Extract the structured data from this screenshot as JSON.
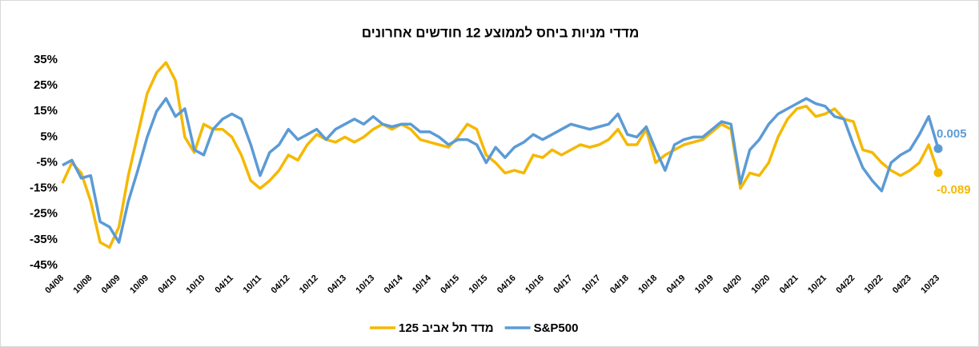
{
  "chart_data": {
    "type": "line",
    "title": "מדדי מניות ביחס לממוצע 12 חודשים אחרונים",
    "categories": [
      "04/08",
      null,
      null,
      "10/08",
      null,
      null,
      "04/09",
      null,
      null,
      "10/09",
      null,
      null,
      "04/10",
      null,
      null,
      "10/10",
      null,
      null,
      "04/11",
      null,
      null,
      "10/11",
      null,
      null,
      "04/12",
      null,
      null,
      "10/12",
      null,
      null,
      "04/13",
      null,
      null,
      "10/13",
      null,
      null,
      "04/14",
      null,
      null,
      "10/14",
      null,
      null,
      "04/15",
      null,
      null,
      "10/15",
      null,
      null,
      "04/16",
      null,
      null,
      "10/16",
      null,
      null,
      "04/17",
      null,
      null,
      "10/17",
      null,
      null,
      "04/18",
      null,
      null,
      "10/18",
      null,
      null,
      "04/19",
      null,
      null,
      "10/19",
      null,
      null,
      "04/20",
      null,
      null,
      "10/20",
      null,
      null,
      "04/21",
      null,
      null,
      "10/21",
      null,
      null,
      "04/22",
      null,
      null,
      "10/22",
      null,
      null,
      "04/23",
      null,
      null,
      "10/23"
    ],
    "series": [
      {
        "name": "מדד תל אביב 125",
        "color": "#f5b800",
        "values": [
          -0.13,
          -0.05,
          -0.09,
          -0.2,
          -0.36,
          -0.38,
          -0.3,
          -0.1,
          0.06,
          0.22,
          0.3,
          0.34,
          0.27,
          0.05,
          -0.01,
          0.1,
          0.08,
          0.08,
          0.05,
          -0.02,
          -0.12,
          -0.15,
          -0.12,
          -0.08,
          -0.02,
          -0.04,
          0.02,
          0.06,
          0.04,
          0.03,
          0.05,
          0.03,
          0.05,
          0.08,
          0.1,
          0.08,
          0.1,
          0.08,
          0.04,
          0.03,
          0.02,
          0.01,
          0.05,
          0.1,
          0.08,
          -0.02,
          -0.05,
          -0.09,
          -0.08,
          -0.09,
          -0.02,
          -0.03,
          0,
          -0.02,
          0,
          0.02,
          0.01,
          0.02,
          0.04,
          0.08,
          0.02,
          0.02,
          0.08,
          -0.05,
          -0.02,
          0,
          0.02,
          0.03,
          0.04,
          0.07,
          0.1,
          0.08,
          -0.15,
          -0.09,
          -0.1,
          -0.05,
          0.05,
          0.12,
          0.16,
          0.17,
          0.13,
          0.14,
          0.16,
          0.12,
          0.11,
          0,
          -0.01,
          -0.05,
          -0.08,
          -0.1,
          -0.08,
          -0.05,
          0.02,
          -0.089
        ]
      },
      {
        "name": "S&P500",
        "color": "#5b9bd5",
        "values": [
          -0.06,
          -0.04,
          -0.11,
          -0.1,
          -0.28,
          -0.3,
          -0.36,
          -0.2,
          -0.08,
          0.05,
          0.15,
          0.2,
          0.13,
          0.16,
          0,
          -0.02,
          0.08,
          0.12,
          0.14,
          0.12,
          0.02,
          -0.1,
          -0.01,
          0.02,
          0.08,
          0.04,
          0.06,
          0.08,
          0.04,
          0.08,
          0.1,
          0.12,
          0.1,
          0.13,
          0.1,
          0.09,
          0.1,
          0.1,
          0.07,
          0.07,
          0.05,
          0.02,
          0.04,
          0.04,
          0.02,
          -0.05,
          0.01,
          -0.03,
          0.01,
          0.03,
          0.06,
          0.04,
          0.06,
          0.08,
          0.1,
          0.09,
          0.08,
          0.09,
          0.1,
          0.14,
          0.06,
          0.05,
          0.09,
          0,
          -0.08,
          0.02,
          0.04,
          0.05,
          0.05,
          0.08,
          0.11,
          0.1,
          -0.13,
          0,
          0.04,
          0.1,
          0.14,
          0.16,
          0.18,
          0.2,
          0.18,
          0.17,
          0.13,
          0.12,
          0.02,
          -0.07,
          -0.12,
          -0.16,
          -0.05,
          -0.02,
          0,
          0.06,
          0.13,
          0.005
        ]
      }
    ],
    "label_last": true,
    "ylim": [
      -0.45,
      0.35
    ],
    "yticks": [
      {
        "value": -0.45,
        "label": "-45%"
      },
      {
        "value": -0.35,
        "label": "-35%"
      },
      {
        "value": -0.25,
        "label": "-25%"
      },
      {
        "value": -0.15,
        "label": "-15%"
      },
      {
        "value": -0.05,
        "label": "-5%"
      },
      {
        "value": 0.05,
        "label": "5%"
      },
      {
        "value": 0.15,
        "label": "15%"
      },
      {
        "value": 0.25,
        "label": "25%"
      },
      {
        "value": 0.35,
        "label": "35%"
      }
    ],
    "legend": "bottom"
  }
}
